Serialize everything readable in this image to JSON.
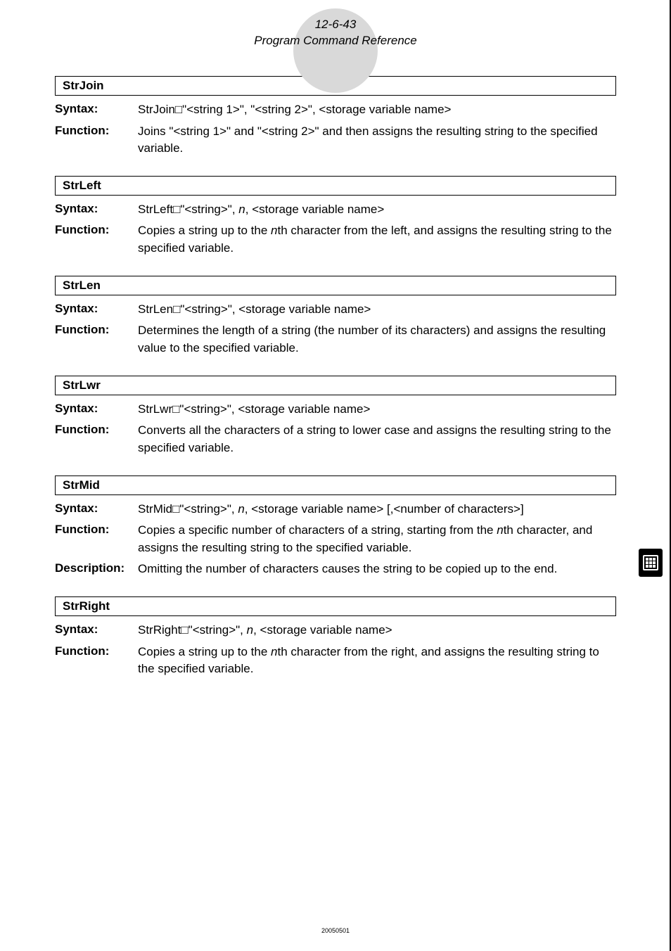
{
  "header": {
    "page_ref": "12-6-43",
    "title": "Program Command Reference"
  },
  "sections": [
    {
      "command": "StrJoin",
      "rows": [
        {
          "label": "Syntax:",
          "html": "StrJoin□\"&lt;string 1&gt;\", \"&lt;string 2&gt;\", &lt;storage variable name&gt;"
        },
        {
          "label": "Function:",
          "html": "Joins \"&lt;string 1&gt;\" and \"&lt;string 2&gt;\" and then assigns the resulting string to the specified variable."
        }
      ]
    },
    {
      "command": "StrLeft",
      "rows": [
        {
          "label": "Syntax:",
          "html": "StrLeft□\"&lt;string&gt;\", <i>n</i>, &lt;storage variable name&gt;"
        },
        {
          "label": "Function:",
          "html": "Copies a string up to the <i>n</i>th character from the left, and assigns the resulting string to the specified variable."
        }
      ]
    },
    {
      "command": "StrLen",
      "rows": [
        {
          "label": "Syntax:",
          "html": "StrLen□\"&lt;string&gt;\", &lt;storage variable name&gt;"
        },
        {
          "label": "Function:",
          "html": "Determines the length of a string (the number of its characters) and assigns the resulting value to the specified variable."
        }
      ]
    },
    {
      "command": "StrLwr",
      "rows": [
        {
          "label": "Syntax:",
          "html": "StrLwr□\"&lt;string&gt;\", &lt;storage variable name&gt;"
        },
        {
          "label": "Function:",
          "html": "Converts all the characters of a string to lower case and assigns the resulting string to the specified variable."
        }
      ]
    },
    {
      "command": "StrMid",
      "rows": [
        {
          "label": "Syntax:",
          "html": "StrMid□\"&lt;string&gt;\", <i>n</i>, &lt;storage variable name&gt; [,&lt;number of characters&gt;]"
        },
        {
          "label": "Function:",
          "html": "Copies a specific number of characters of a string, starting from the <i>n</i>th character, and assigns the resulting string to the specified variable."
        },
        {
          "label": "Description:",
          "html": "Omitting the number of characters causes the string to be copied up to the end."
        }
      ]
    },
    {
      "command": "StrRight",
      "rows": [
        {
          "label": "Syntax:",
          "html": "StrRight□\"&lt;string&gt;\", <i>n</i>, &lt;storage variable name&gt;"
        },
        {
          "label": "Function:",
          "html": "Copies a string up to the <i>n</i>th character from the right, and assigns the resulting string to the specified variable."
        }
      ]
    }
  ],
  "footer": {
    "date": "20050501"
  }
}
